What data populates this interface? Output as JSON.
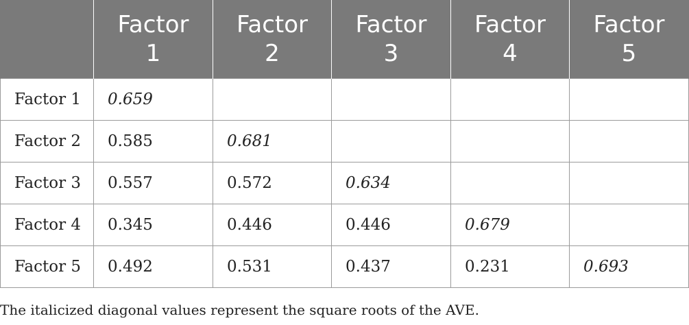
{
  "table": {
    "columns": [
      "",
      "Factor\n1",
      "Factor\n2",
      "Factor\n3",
      "Factor\n4",
      "Factor\n5"
    ],
    "header_lines": [
      {
        "line1": "Factor",
        "line2": "1"
      },
      {
        "line1": "Factor",
        "line2": "2"
      },
      {
        "line1": "Factor",
        "line2": "3"
      },
      {
        "line1": "Factor",
        "line2": "4"
      },
      {
        "line1": "Factor",
        "line2": "5"
      }
    ],
    "rows": [
      {
        "label": "Factor 1",
        "cells": [
          "0.659",
          "",
          "",
          "",
          ""
        ]
      },
      {
        "label": "Factor 2",
        "cells": [
          "0.585",
          "0.681",
          "",
          "",
          ""
        ]
      },
      {
        "label": "Factor 3",
        "cells": [
          "0.557",
          "0.572",
          "0.634",
          "",
          ""
        ]
      },
      {
        "label": "Factor 4",
        "cells": [
          "0.345",
          "0.446",
          "0.446",
          "0.679",
          ""
        ]
      },
      {
        "label": "Factor 5",
        "cells": [
          "0.492",
          "0.531",
          "0.437",
          "0.231",
          "0.693"
        ]
      }
    ]
  },
  "footnote": "The italicized diagonal values represent the square roots of the AVE."
}
